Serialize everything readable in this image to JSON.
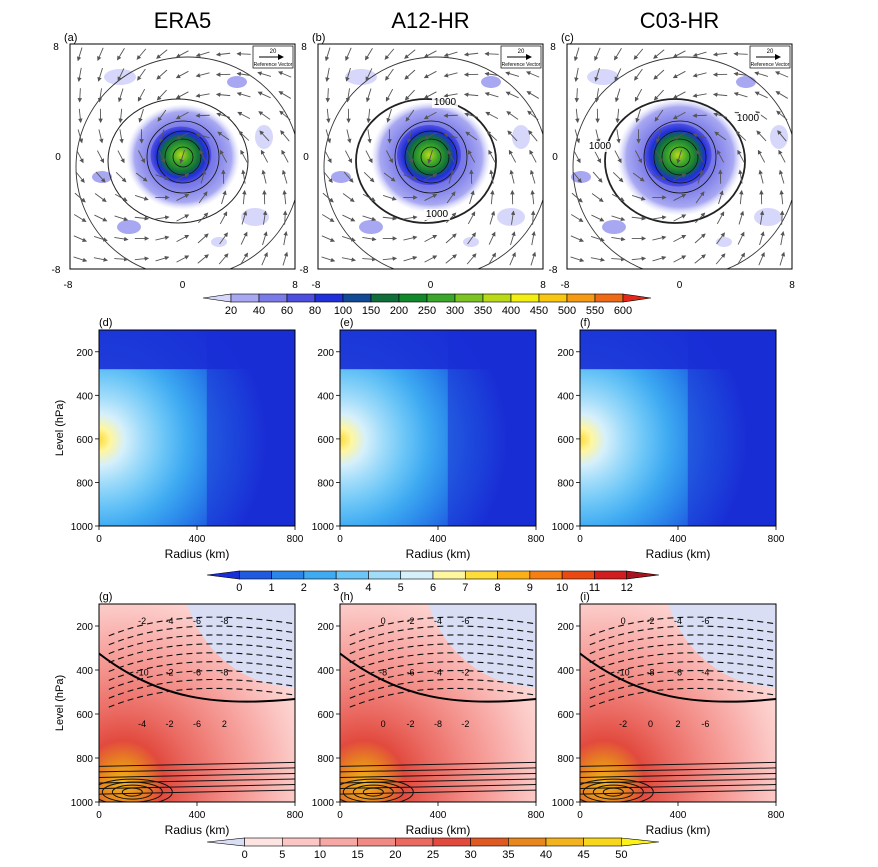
{
  "chart_data": [
    {
      "type": "heatmap",
      "row": "top",
      "panel_titles": [
        "ERA5",
        "A12-HR",
        "C03-HR"
      ],
      "panel_letters": [
        "(a)",
        "(b)",
        "(c)"
      ],
      "x_ticks": [
        "-8",
        "0",
        "8"
      ],
      "y_ticks": [
        "8",
        "0",
        "-8"
      ],
      "xlim": [
        -8,
        8
      ],
      "ylim": [
        -8,
        8
      ],
      "contour_labels": {
        "a": [],
        "b": [
          "1000",
          "1000"
        ],
        "c": [
          "1000",
          "1000"
        ]
      },
      "reference_vector": {
        "value": "20",
        "label": "Reference Vector"
      },
      "colorbar": {
        "levels": [
          "20",
          "40",
          "60",
          "80",
          "100",
          "150",
          "200",
          "250",
          "300",
          "350",
          "400",
          "450",
          "500",
          "550",
          "600"
        ],
        "colors": [
          "#d7d7fb",
          "#a8a8f2",
          "#7a7ae8",
          "#4d4de0",
          "#1f2fd9",
          "#104a96",
          "#0f6e3a",
          "#11882a",
          "#3aa62a",
          "#7cc422",
          "#bcd918",
          "#f2ee11",
          "#f9c611",
          "#f59a13",
          "#ee6a16",
          "#e3281a"
        ]
      }
    },
    {
      "type": "heatmap",
      "row": "middle",
      "panel_letters": [
        "(d)",
        "(e)",
        "(f)"
      ],
      "xlabel": "Radius (km)",
      "ylabel": "Level (hPa)",
      "x_ticks": [
        "0",
        "400",
        "800"
      ],
      "y_ticks": [
        "200",
        "400",
        "600",
        "800",
        "1000"
      ],
      "xlim": [
        0,
        800
      ],
      "ylim": [
        1000,
        100
      ],
      "colorbar": {
        "levels": [
          "0",
          "1",
          "2",
          "3",
          "4",
          "5",
          "6",
          "7",
          "8",
          "9",
          "10",
          "11",
          "12"
        ],
        "colors": [
          "#1a2ed6",
          "#1f5ae0",
          "#2a86ea",
          "#3eaaf2",
          "#6cc6f7",
          "#a1dcfa",
          "#d6f0fb",
          "#fff6a0",
          "#fedc3a",
          "#fbb116",
          "#f57f12",
          "#ea4a12",
          "#d11d1d",
          "#a8141b"
        ]
      }
    },
    {
      "type": "heatmap",
      "row": "bottom",
      "panel_letters": [
        "(g)",
        "(h)",
        "(i)"
      ],
      "xlabel": "Radius (km)",
      "ylabel": "Level (hPa)",
      "x_ticks": [
        "0",
        "400",
        "800"
      ],
      "y_ticks": [
        "200",
        "400",
        "600",
        "800",
        "1000"
      ],
      "xlim": [
        0,
        800
      ],
      "ylim": [
        1000,
        100
      ],
      "contour_labels": {
        "g": [
          "-2",
          "-4",
          "-6",
          "-8",
          "-10",
          "-2",
          "-6",
          "-8",
          "-4",
          "-2",
          "-6",
          "2"
        ],
        "h": [
          "0",
          "-2",
          "-4",
          "-6",
          "-8",
          "-6",
          "-4",
          "-2",
          "0",
          "-2",
          "-8",
          "-2"
        ],
        "i": [
          "0",
          "-2",
          "-4",
          "-6",
          "-10",
          "-8",
          "-6",
          "-4",
          "-2",
          "0",
          "2",
          "-6"
        ]
      },
      "colorbar": {
        "levels": [
          "0",
          "5",
          "10",
          "15",
          "20",
          "25",
          "30",
          "35",
          "40",
          "45",
          "50"
        ],
        "colors": [
          "#d9def5",
          "#fde3e1",
          "#fbc6c3",
          "#f8a8a4",
          "#f28a84",
          "#ea6a62",
          "#e24a3e",
          "#df5a22",
          "#e8871e",
          "#f2b31c",
          "#f8d61b",
          "#fbf21a"
        ]
      }
    }
  ]
}
